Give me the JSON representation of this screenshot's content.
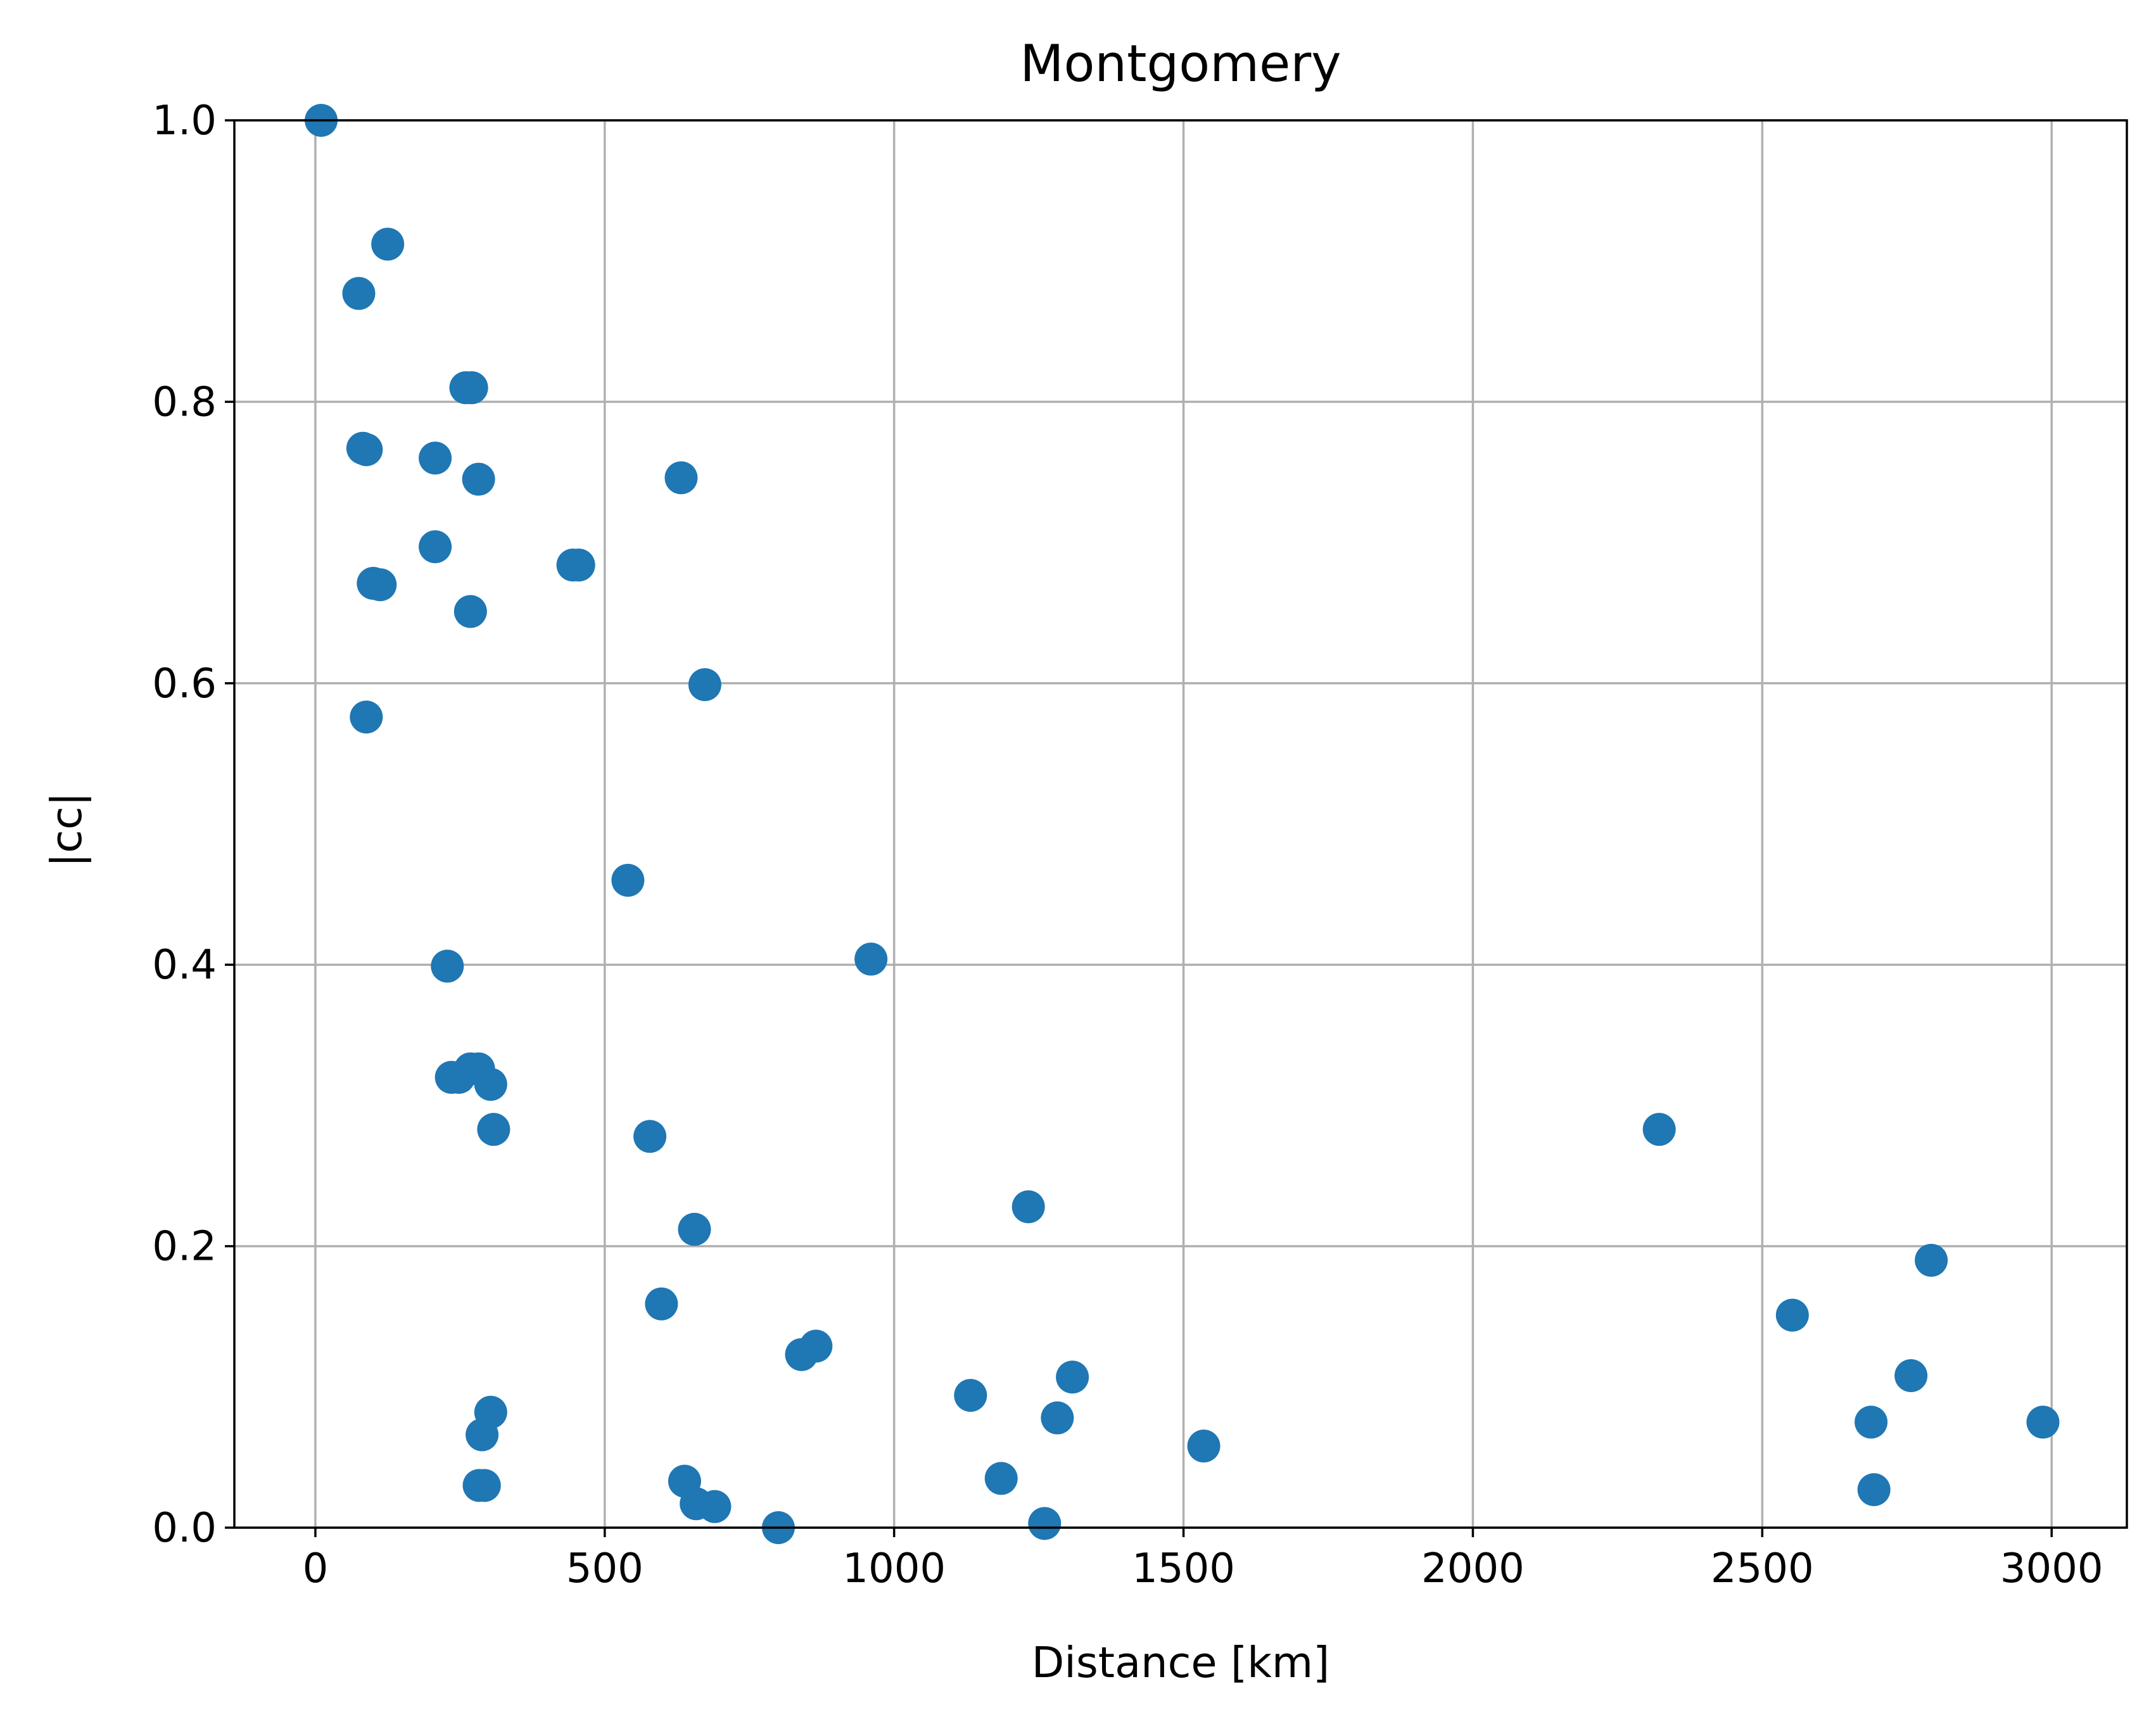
{
  "chart_data": {
    "type": "scatter",
    "title": "Montgomery",
    "xlabel": "Distance [km]",
    "ylabel": "|cc|",
    "xlim": [
      -140,
      3130
    ],
    "ylim": [
      0.0,
      1.0
    ],
    "xticks": [
      0,
      500,
      1000,
      1500,
      2000,
      2500,
      3000
    ],
    "xtick_labels": [
      "0",
      "500",
      "1000",
      "1500",
      "2000",
      "2500",
      "3000"
    ],
    "yticks": [
      0.0,
      0.2,
      0.4,
      0.6,
      0.8,
      1.0
    ],
    "ytick_labels": [
      "0.0",
      "0.2",
      "0.4",
      "0.6",
      "0.8",
      "1.0"
    ],
    "grid": true,
    "marker_color": "#1f77b4",
    "series": [
      {
        "x": [
          10,
          125,
          75,
          260,
          270,
          82,
          88,
          207,
          282,
          632,
          207,
          100,
          112,
          445,
          455,
          268,
          673,
          88,
          540,
          960,
          228,
          235,
          248,
          268,
          282,
          303,
          308,
          578,
          655,
          1232,
          2322,
          598,
          865,
          840,
          1132,
          1308,
          1282,
          303,
          288,
          283,
          292,
          638,
          658,
          690,
          1185,
          800,
          1260,
          1535,
          2552,
          2792,
          2757,
          2688,
          2985,
          2693
        ],
        "y": [
          1.0,
          0.912,
          0.877,
          0.81,
          0.81,
          0.767,
          0.766,
          0.76,
          0.745,
          0.746,
          0.697,
          0.671,
          0.67,
          0.684,
          0.684,
          0.651,
          0.599,
          0.576,
          0.46,
          0.404,
          0.399,
          0.32,
          0.32,
          0.326,
          0.326,
          0.315,
          0.283,
          0.278,
          0.212,
          0.228,
          0.283,
          0.159,
          0.129,
          0.123,
          0.094,
          0.107,
          0.078,
          0.082,
          0.066,
          0.03,
          0.03,
          0.033,
          0.017,
          0.015,
          0.035,
          0.0,
          0.003,
          0.058,
          0.151,
          0.19,
          0.108,
          0.075,
          0.075,
          0.027
        ]
      }
    ]
  }
}
